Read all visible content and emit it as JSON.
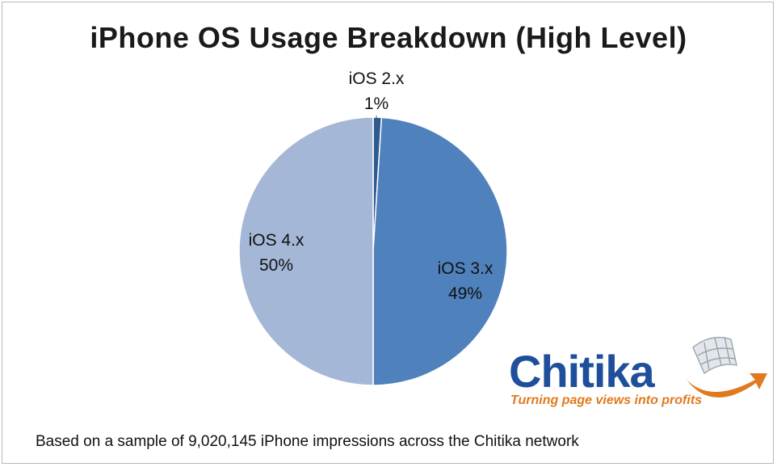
{
  "chart_data": {
    "type": "pie",
    "title": "iPhone OS Usage Breakdown (High Level)",
    "slices": [
      {
        "label": "iOS 2.x",
        "value": 1,
        "value_label": "1%",
        "color": "#2e5a8e"
      },
      {
        "label": "iOS 3.x",
        "value": 49,
        "value_label": "49%",
        "color": "#4f81bd"
      },
      {
        "label": "iOS 4.x",
        "value": 50,
        "value_label": "50%",
        "color": "#a5b7d6"
      }
    ]
  },
  "logo": {
    "name": "Chitika",
    "tagline": "Turning page views into profits",
    "colors": {
      "text": "#1f4f9b",
      "tagline": "#e07a1f",
      "arrow": "#e07a1f",
      "globe": "#9aa3ad"
    }
  },
  "footnote": "Based on a sample of 9,020,145 iPhone impressions across the Chitika network"
}
